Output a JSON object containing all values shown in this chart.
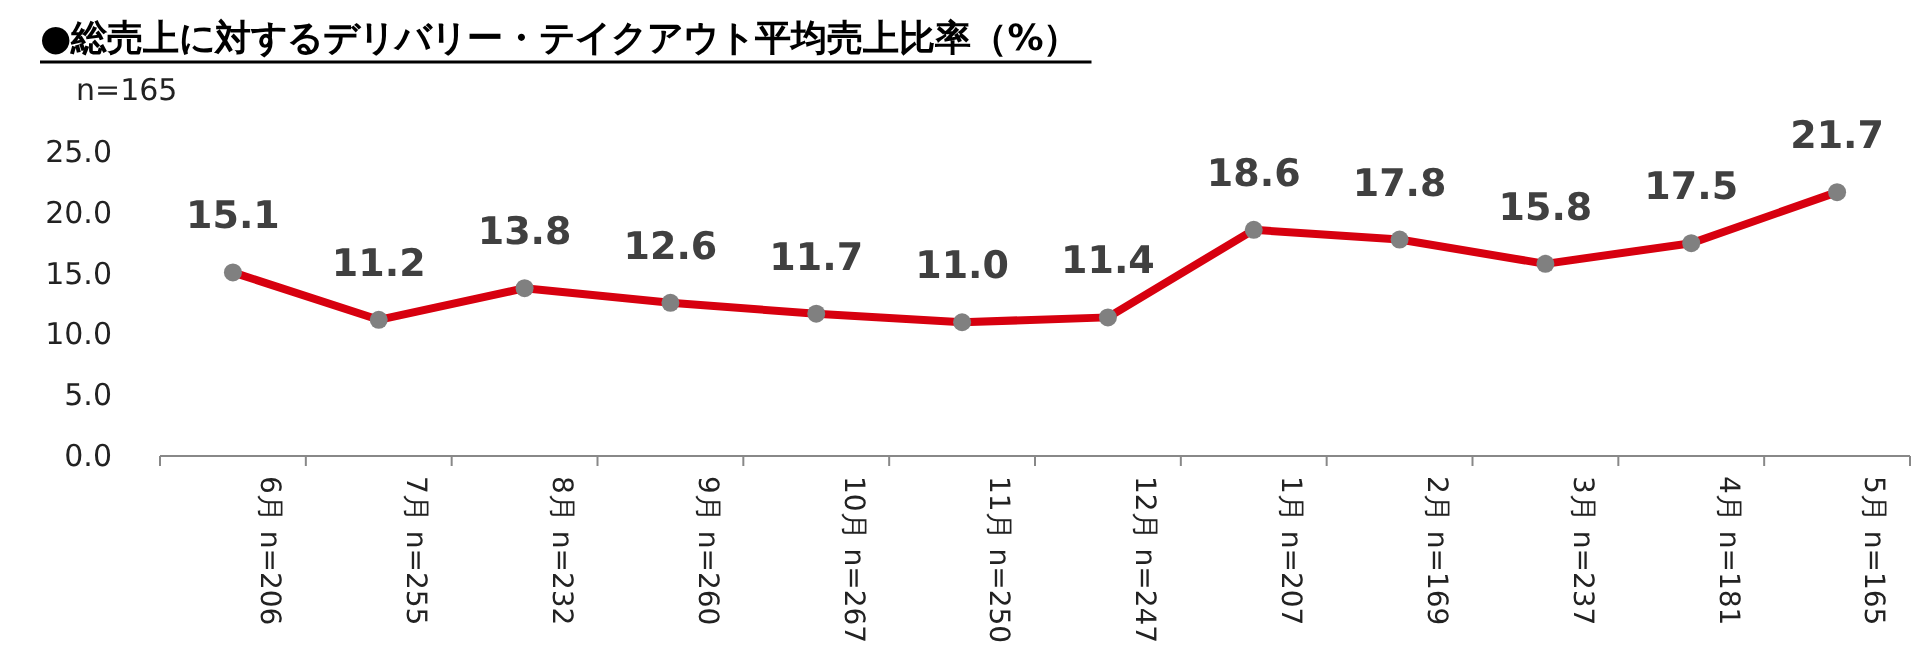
{
  "chart_data": {
    "type": "line",
    "title": "●総売上に対するデリバリー・テイクアウト平均売上比率（%）",
    "subtitle": "n=165",
    "categories": [
      "6月 n=206",
      "7月 n=255",
      "8月 n=232",
      "9月 n=260",
      "10月 n=267",
      "11月 n=250",
      "12月 n=247",
      "1月 n=207",
      "2月 n=169",
      "3月 n=237",
      "4月 n=181",
      "5月 n=165"
    ],
    "series": [
      {
        "color": "#d7000f",
        "values": [
          15.1,
          11.2,
          13.8,
          12.6,
          11.7,
          11.0,
          11.4,
          18.6,
          17.8,
          15.8,
          17.5,
          21.7
        ],
        "value_labels": [
          "15.1",
          "11.2",
          "13.8",
          "12.6",
          "11.7",
          "11.0",
          "11.4",
          "18.6",
          "17.8",
          "15.8",
          "17.5",
          "21.7"
        ]
      }
    ],
    "ylim": [
      0,
      25
    ],
    "yticks": [
      {
        "value": 0,
        "label": "0.0"
      },
      {
        "value": 5,
        "label": "5.0"
      },
      {
        "value": 10,
        "label": "10.0"
      },
      {
        "value": 15,
        "label": "15.0"
      },
      {
        "value": 20,
        "label": "20.0"
      },
      {
        "value": 25,
        "label": "25.0"
      }
    ],
    "marker": "circle",
    "line_style": "solid",
    "grid": false
  }
}
